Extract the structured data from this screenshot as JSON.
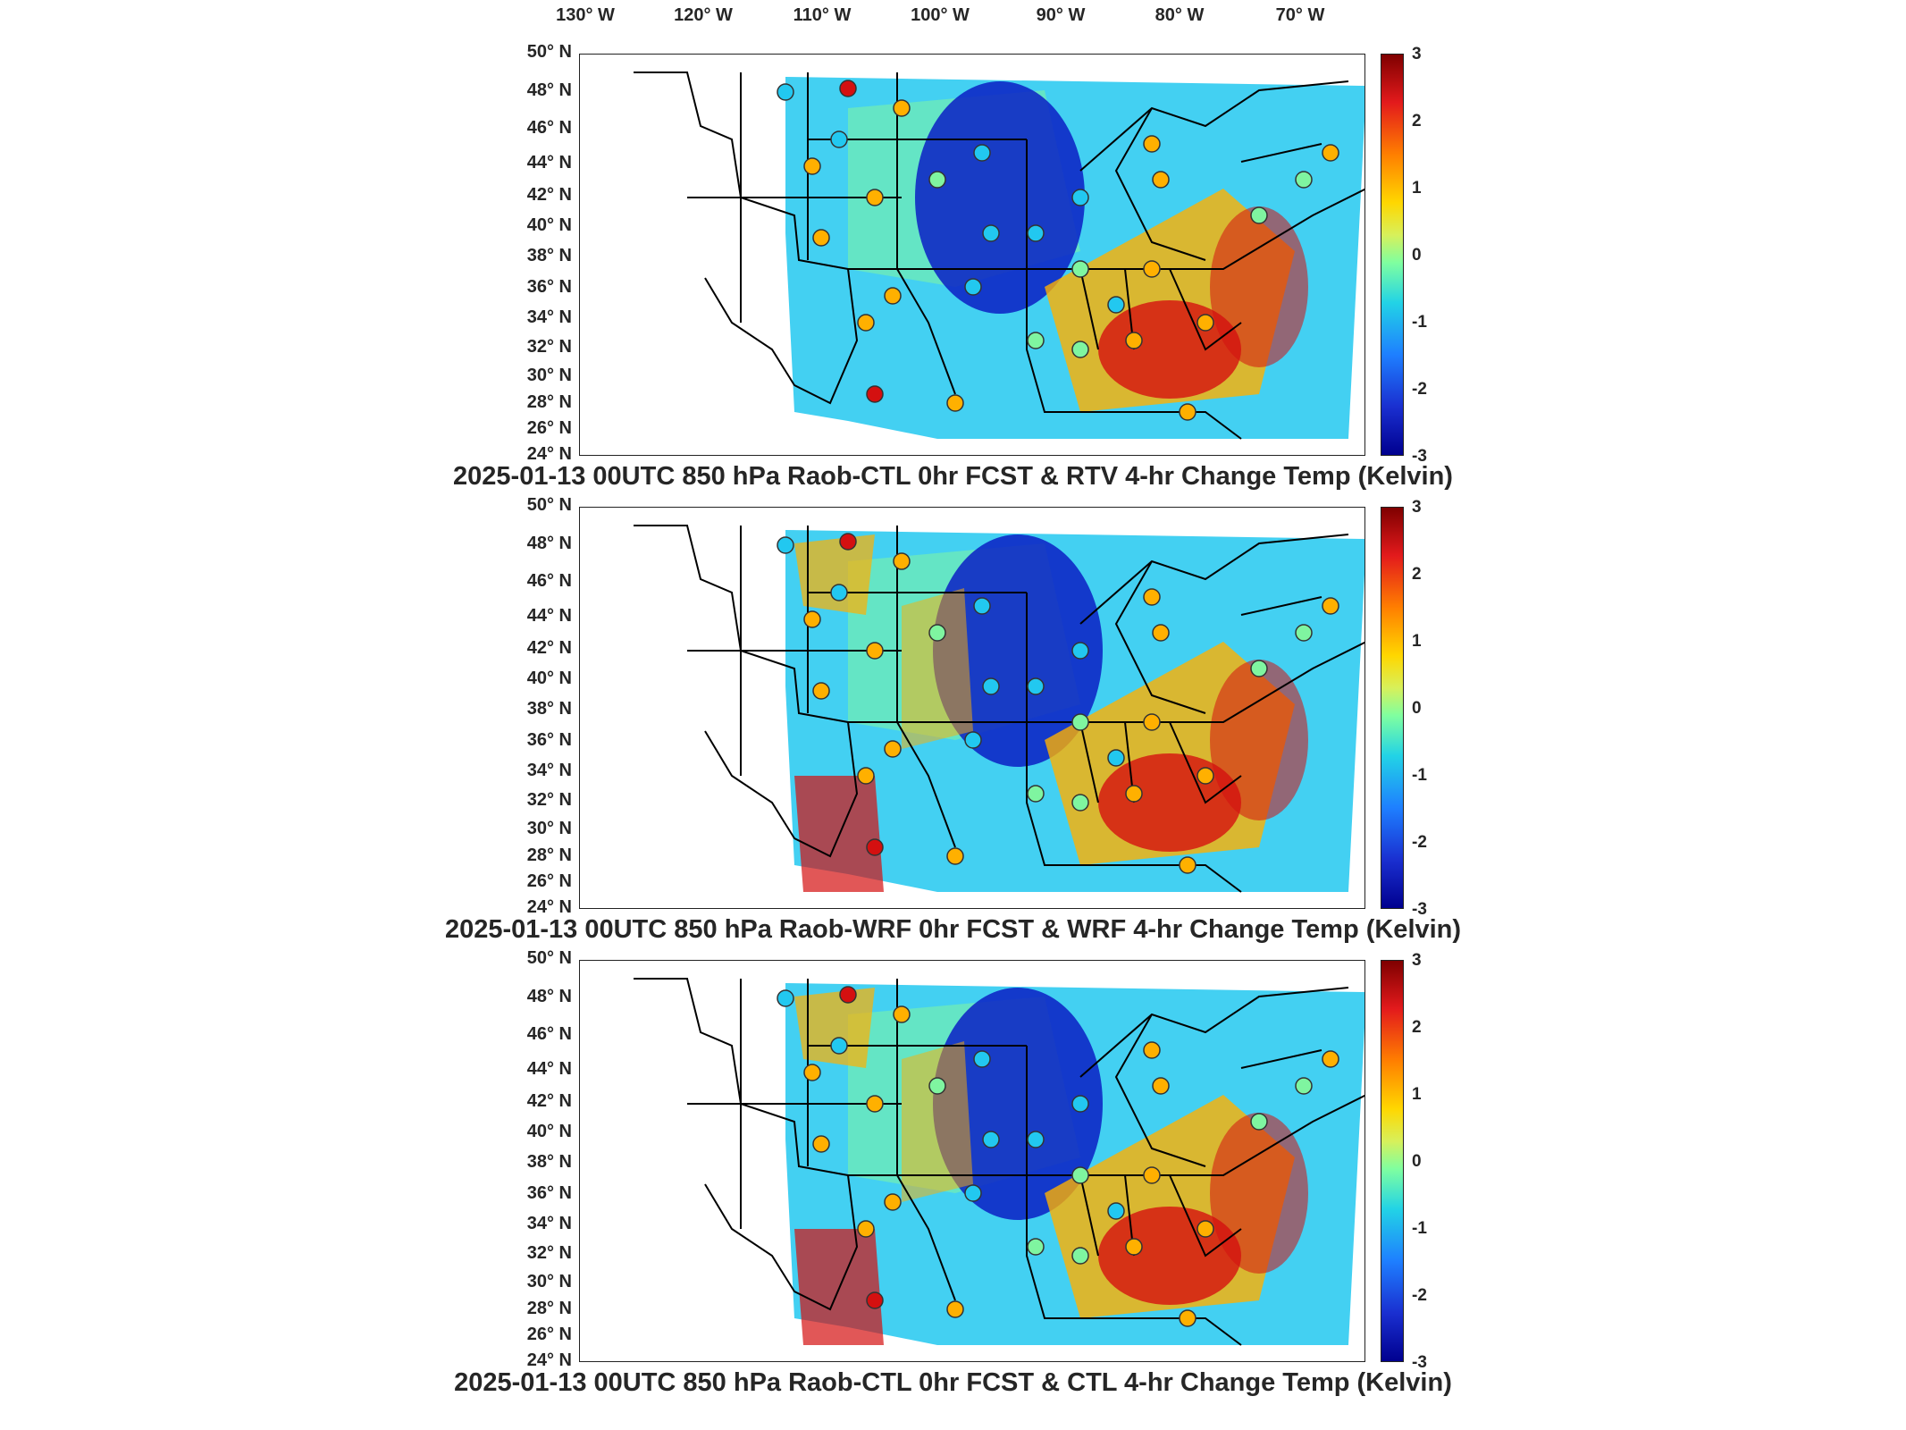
{
  "longitude_labels": [
    "130° W",
    "120° W",
    "110° W",
    "100° W",
    "90° W",
    "80° W",
    "70° W"
  ],
  "latitude_labels": [
    "50° N",
    "48° N",
    "46° N",
    "44° N",
    "42° N",
    "40° N",
    "38° N",
    "36° N",
    "34° N",
    "32° N",
    "30° N",
    "28° N",
    "26° N",
    "24° N"
  ],
  "colorbar": {
    "ticks": [
      "3",
      "2",
      "1",
      "0",
      "-1",
      "-2",
      "-3"
    ],
    "min": -3,
    "max": 3,
    "colormap": "jet"
  },
  "panels": [
    {
      "title": "2025-01-13 00UTC 850 hPa Raob-CTL 0hr FCST & RTV 4-hr Change Temp (Kelvin)"
    },
    {
      "title": "2025-01-13 00UTC 850 hPa Raob-WRF 0hr FCST & WRF 4-hr Change Temp (Kelvin)"
    },
    {
      "title": "2025-01-13 00UTC 850 hPa Raob-CTL 0hr FCST & CTL 4-hr Change Temp (Kelvin)"
    }
  ],
  "colors": {
    "cold": "#0a1fc4",
    "cool": "#22c8f0",
    "neutral": "#7ff5a0",
    "warm": "#ffb000",
    "hot": "#d41010"
  }
}
